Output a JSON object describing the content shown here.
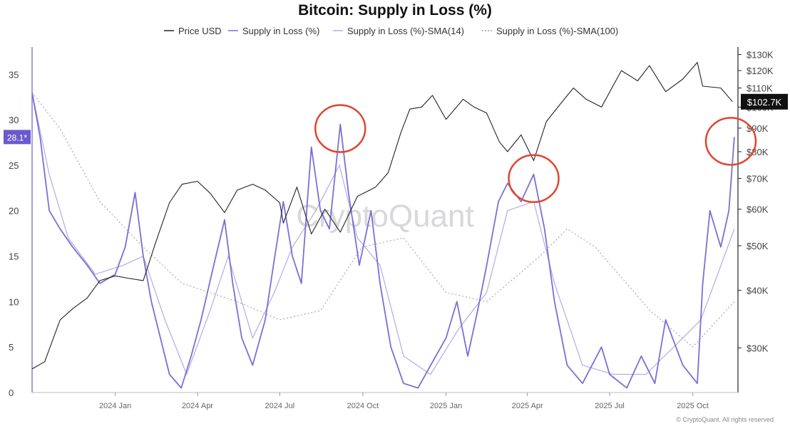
{
  "chart_data": {
    "type": "line",
    "title": "Bitcoin: Supply in Loss (%)",
    "legend_position": "top-center",
    "legend": [
      {
        "name": "Price USD",
        "color": "#222222",
        "dash": "solid"
      },
      {
        "name": "Supply in Loss (%)",
        "color": "#7b6fd6",
        "dash": "solid"
      },
      {
        "name": "Supply in Loss (%)-SMA(14)",
        "color": "#b3abe6",
        "dash": "solid"
      },
      {
        "name": "Supply in Loss (%)-SMA(100)",
        "color": "#9a94b8",
        "dash": "dotted"
      }
    ],
    "left_axis": {
      "ticks": [
        "35",
        "30",
        "25",
        "20",
        "15",
        "10",
        "5",
        "0"
      ],
      "range": [
        0,
        38
      ]
    },
    "right_axis": {
      "scale": "log",
      "ticks": [
        "$130K",
        "$120K",
        "$110K",
        "$100K",
        "$90K",
        "$80K",
        "$70K",
        "$60K",
        "$50K",
        "$40K",
        "$30K"
      ],
      "range": [
        24000,
        135000
      ]
    },
    "x_axis": {
      "ticks": [
        "2024 Jan",
        "2024 Apr",
        "2024 Jul",
        "2024 Oct",
        "2025 Jan",
        "2025 Apr",
        "2025 Jul",
        "2025 Oct"
      ],
      "range": [
        "2023-10-01",
        "2025-11-20"
      ]
    },
    "current_value_labels": {
      "supply_in_loss": "28.1*",
      "price": "$102.7K"
    },
    "price_series": [
      [
        "2023-10-01",
        27000
      ],
      [
        "2023-10-15",
        28000
      ],
      [
        "2023-11-01",
        34500
      ],
      [
        "2023-11-15",
        36500
      ],
      [
        "2023-12-01",
        38500
      ],
      [
        "2023-12-15",
        42000
      ],
      [
        "2024-01-01",
        43000
      ],
      [
        "2024-01-15",
        42500
      ],
      [
        "2024-02-01",
        42000
      ],
      [
        "2024-02-15",
        51000
      ],
      [
        "2024-03-01",
        62000
      ],
      [
        "2024-03-15",
        68000
      ],
      [
        "2024-04-01",
        69000
      ],
      [
        "2024-04-15",
        65000
      ],
      [
        "2024-05-01",
        59000
      ],
      [
        "2024-05-15",
        66000
      ],
      [
        "2024-06-01",
        68000
      ],
      [
        "2024-06-15",
        66000
      ],
      [
        "2024-07-01",
        62000
      ],
      [
        "2024-07-05",
        56000
      ],
      [
        "2024-07-20",
        67000
      ],
      [
        "2024-08-05",
        53000
      ],
      [
        "2024-08-20",
        60000
      ],
      [
        "2024-09-06",
        53500
      ],
      [
        "2024-09-25",
        64000
      ],
      [
        "2024-10-15",
        67000
      ],
      [
        "2024-10-29",
        72000
      ],
      [
        "2024-11-12",
        88000
      ],
      [
        "2024-11-22",
        99000
      ],
      [
        "2024-12-05",
        100000
      ],
      [
        "2024-12-17",
        106000
      ],
      [
        "2025-01-01",
        94000
      ],
      [
        "2025-01-20",
        104000
      ],
      [
        "2025-02-01",
        100000
      ],
      [
        "2025-02-15",
        97000
      ],
      [
        "2025-03-01",
        84000
      ],
      [
        "2025-03-10",
        80000
      ],
      [
        "2025-03-25",
        87000
      ],
      [
        "2025-04-08",
        76500
      ],
      [
        "2025-04-22",
        93000
      ],
      [
        "2025-05-10",
        103000
      ],
      [
        "2025-05-22",
        110000
      ],
      [
        "2025-06-05",
        104000
      ],
      [
        "2025-06-22",
        100000
      ],
      [
        "2025-07-14",
        120000
      ],
      [
        "2025-08-01",
        114000
      ],
      [
        "2025-08-14",
        123000
      ],
      [
        "2025-09-01",
        108000
      ],
      [
        "2025-09-20",
        115000
      ],
      [
        "2025-10-06",
        125000
      ],
      [
        "2025-10-12",
        111000
      ],
      [
        "2025-11-01",
        110000
      ],
      [
        "2025-11-14",
        102700
      ]
    ],
    "supply_in_loss_series": [
      [
        "2023-10-01",
        33
      ],
      [
        "2023-10-10",
        28
      ],
      [
        "2023-10-20",
        20
      ],
      [
        "2023-11-01",
        18
      ],
      [
        "2023-11-15",
        16
      ],
      [
        "2023-12-01",
        14
      ],
      [
        "2023-12-15",
        12
      ],
      [
        "2024-01-01",
        13
      ],
      [
        "2024-01-12",
        16
      ],
      [
        "2024-01-23",
        22
      ],
      [
        "2024-02-01",
        15
      ],
      [
        "2024-02-10",
        10
      ],
      [
        "2024-02-20",
        6
      ],
      [
        "2024-03-01",
        2
      ],
      [
        "2024-03-14",
        0.5
      ],
      [
        "2024-03-25",
        4
      ],
      [
        "2024-04-05",
        8
      ],
      [
        "2024-04-19",
        14
      ],
      [
        "2024-05-01",
        19
      ],
      [
        "2024-05-10",
        12
      ],
      [
        "2024-05-20",
        6
      ],
      [
        "2024-06-01",
        3
      ],
      [
        "2024-06-15",
        8
      ],
      [
        "2024-06-24",
        14
      ],
      [
        "2024-07-05",
        21
      ],
      [
        "2024-07-15",
        15
      ],
      [
        "2024-07-25",
        12
      ],
      [
        "2024-08-05",
        27
      ],
      [
        "2024-08-15",
        20
      ],
      [
        "2024-08-25",
        18
      ],
      [
        "2024-09-06",
        29.5
      ],
      [
        "2024-09-15",
        22
      ],
      [
        "2024-09-27",
        14
      ],
      [
        "2024-10-10",
        20
      ],
      [
        "2024-10-20",
        12
      ],
      [
        "2024-11-01",
        5
      ],
      [
        "2024-11-15",
        1
      ],
      [
        "2024-12-01",
        0.5
      ],
      [
        "2024-12-15",
        3
      ],
      [
        "2025-01-01",
        6
      ],
      [
        "2025-01-13",
        10
      ],
      [
        "2025-01-25",
        4
      ],
      [
        "2025-02-05",
        9
      ],
      [
        "2025-02-15",
        14
      ],
      [
        "2025-02-28",
        21
      ],
      [
        "2025-03-10",
        23
      ],
      [
        "2025-03-25",
        21
      ],
      [
        "2025-04-08",
        24
      ],
      [
        "2025-04-20",
        18
      ],
      [
        "2025-05-01",
        10
      ],
      [
        "2025-05-15",
        3
      ],
      [
        "2025-06-01",
        1
      ],
      [
        "2025-06-22",
        5
      ],
      [
        "2025-07-01",
        2
      ],
      [
        "2025-07-20",
        0.5
      ],
      [
        "2025-08-05",
        4
      ],
      [
        "2025-08-20",
        1
      ],
      [
        "2025-09-01",
        8
      ],
      [
        "2025-09-20",
        3
      ],
      [
        "2025-10-06",
        1
      ],
      [
        "2025-10-12",
        12
      ],
      [
        "2025-10-20",
        20
      ],
      [
        "2025-11-01",
        16
      ],
      [
        "2025-11-10",
        20
      ],
      [
        "2025-11-16",
        28.1
      ]
    ],
    "sma14_series": [
      [
        "2023-10-01",
        33
      ],
      [
        "2023-10-20",
        24
      ],
      [
        "2023-11-10",
        17
      ],
      [
        "2023-12-10",
        13
      ],
      [
        "2024-01-10",
        14
      ],
      [
        "2024-02-01",
        15
      ],
      [
        "2024-02-25",
        8
      ],
      [
        "2024-03-20",
        2
      ],
      [
        "2024-04-15",
        9
      ],
      [
        "2024-05-05",
        15
      ],
      [
        "2024-06-01",
        6
      ],
      [
        "2024-06-25",
        11
      ],
      [
        "2024-07-15",
        16
      ],
      [
        "2024-08-10",
        20
      ],
      [
        "2024-09-05",
        25
      ],
      [
        "2024-09-25",
        17
      ],
      [
        "2024-10-20",
        14
      ],
      [
        "2024-11-15",
        4
      ],
      [
        "2024-12-15",
        2
      ],
      [
        "2025-01-15",
        7
      ],
      [
        "2025-02-15",
        11
      ],
      [
        "2025-03-10",
        20
      ],
      [
        "2025-04-08",
        21
      ],
      [
        "2025-05-01",
        12
      ],
      [
        "2025-06-01",
        3
      ],
      [
        "2025-07-05",
        2
      ],
      [
        "2025-08-10",
        2
      ],
      [
        "2025-09-10",
        5
      ],
      [
        "2025-10-10",
        8
      ],
      [
        "2025-11-16",
        18
      ]
    ],
    "sma100_series": [
      [
        "2023-10-01",
        33
      ],
      [
        "2023-11-01",
        29
      ],
      [
        "2023-12-15",
        21
      ],
      [
        "2024-02-01",
        16
      ],
      [
        "2024-03-15",
        12
      ],
      [
        "2024-05-15",
        10
      ],
      [
        "2024-07-01",
        8
      ],
      [
        "2024-08-15",
        9
      ],
      [
        "2024-09-30",
        16
      ],
      [
        "2024-11-15",
        17
      ],
      [
        "2025-01-01",
        11
      ],
      [
        "2025-02-15",
        10
      ],
      [
        "2025-04-15",
        15
      ],
      [
        "2025-05-15",
        18
      ],
      [
        "2025-06-15",
        16
      ],
      [
        "2025-08-15",
        9
      ],
      [
        "2025-10-01",
        5
      ],
      [
        "2025-11-16",
        10
      ]
    ],
    "highlight_circles": [
      "2024-09-06",
      "2025-04-08",
      "2025-11-16"
    ]
  },
  "watermark": "CryptoQuant",
  "credit": "© CryptoQuant. All rights reserved"
}
